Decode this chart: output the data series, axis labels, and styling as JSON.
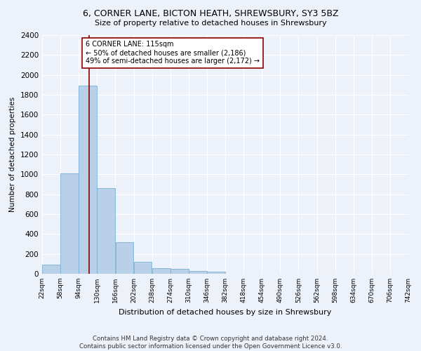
{
  "title": "6, CORNER LANE, BICTON HEATH, SHREWSBURY, SY3 5BZ",
  "subtitle": "Size of property relative to detached houses in Shrewsbury",
  "xlabel": "Distribution of detached houses by size in Shrewsbury",
  "ylabel": "Number of detached properties",
  "bar_color": "#b8d0e8",
  "bar_edge_color": "#7aafd4",
  "background_color": "#edf2fa",
  "grid_color": "#ffffff",
  "annotation_line_color": "#8b0000",
  "annotation_box_color": "#ffffff",
  "annotation_text": "6 CORNER LANE: 115sqm\n← 50% of detached houses are smaller (2,186)\n49% of semi-detached houses are larger (2,172) →",
  "footer": "Contains HM Land Registry data © Crown copyright and database right 2024.\nContains public sector information licensed under the Open Government Licence v3.0.",
  "property_size_sqm": 115,
  "bin_width": 36,
  "bin_starts": [
    22,
    58,
    94,
    130,
    166,
    202,
    238,
    274,
    310,
    346,
    382,
    418,
    454,
    490,
    526,
    562,
    598,
    634,
    670,
    706
  ],
  "bin_labels": [
    "22sqm",
    "58sqm",
    "94sqm",
    "130sqm",
    "166sqm",
    "202sqm",
    "238sqm",
    "274sqm",
    "310sqm",
    "346sqm",
    "382sqm",
    "418sqm",
    "454sqm",
    "490sqm",
    "526sqm",
    "562sqm",
    "598sqm",
    "634sqm",
    "670sqm",
    "706sqm",
    "742sqm"
  ],
  "bar_heights": [
    90,
    1010,
    1890,
    860,
    315,
    120,
    60,
    50,
    30,
    20,
    0,
    0,
    0,
    0,
    0,
    0,
    0,
    0,
    0,
    0
  ],
  "ylim": [
    0,
    2400
  ],
  "yticks": [
    0,
    200,
    400,
    600,
    800,
    1000,
    1200,
    1400,
    1600,
    1800,
    2000,
    2200,
    2400
  ]
}
